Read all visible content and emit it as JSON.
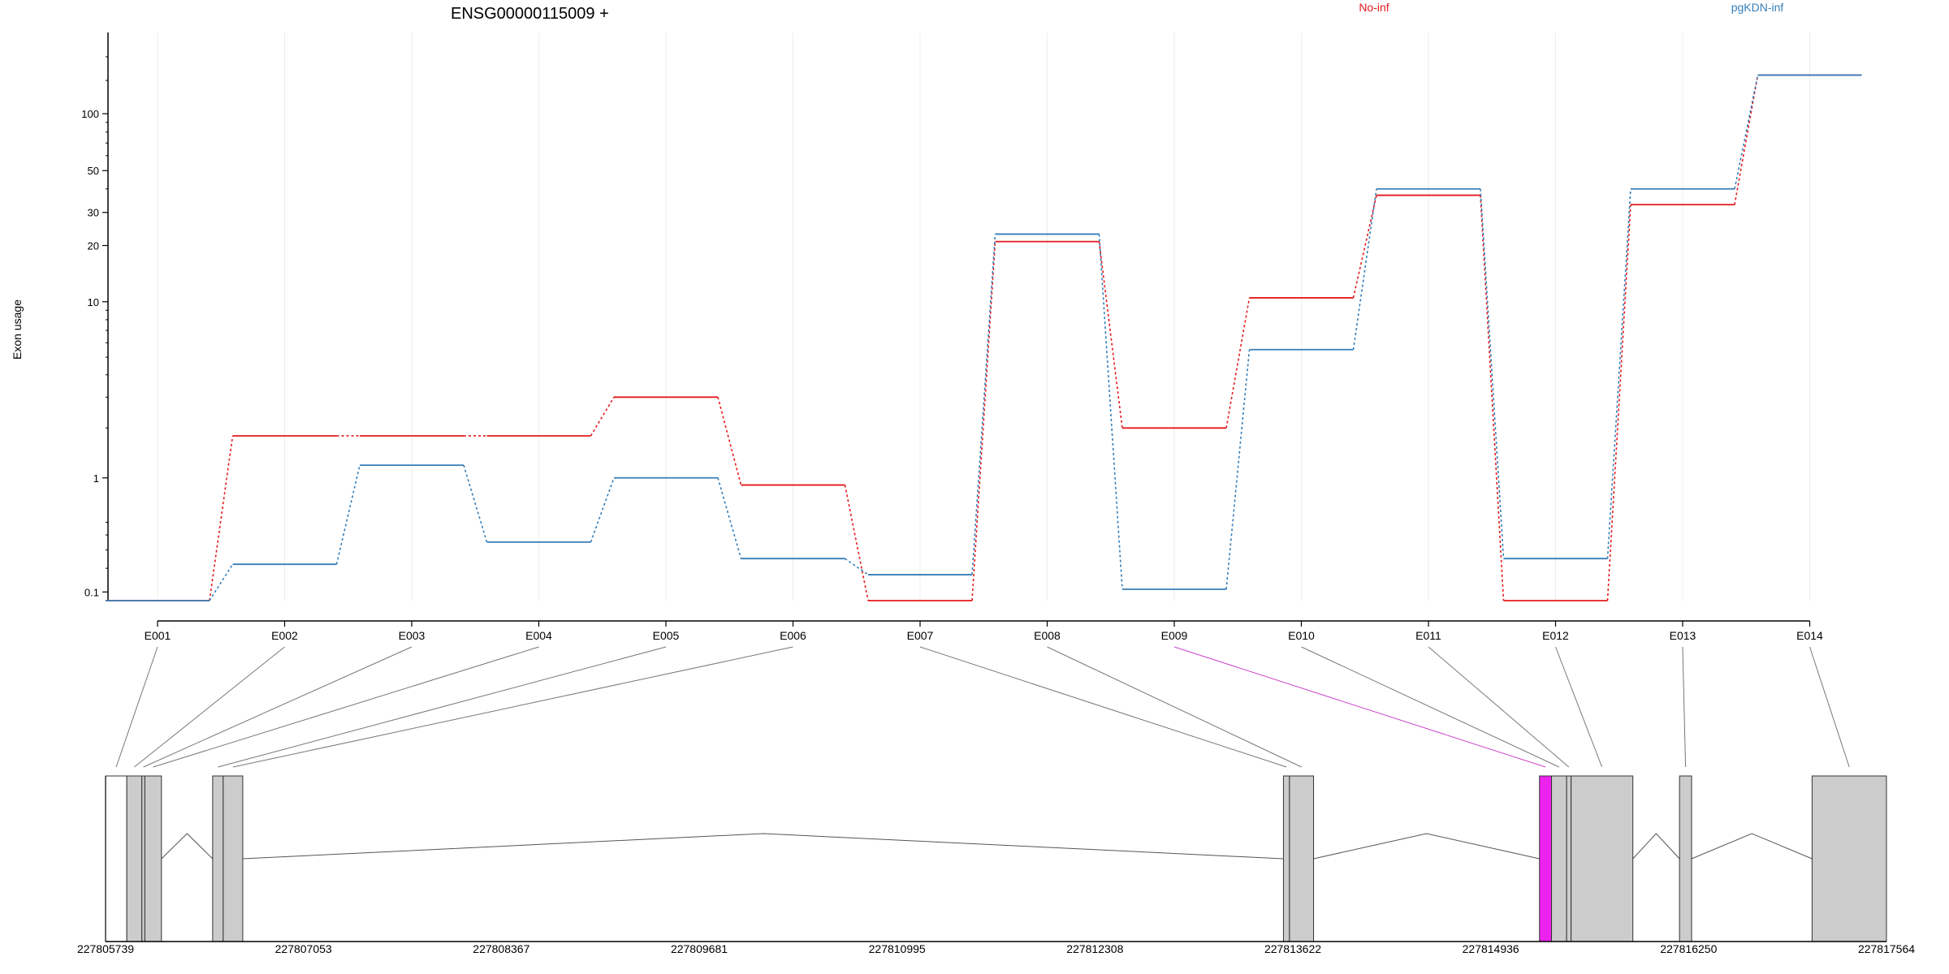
{
  "chart_data": {
    "type": "line",
    "title": "ENSG00000115009 +",
    "ylabel": "Exon usage",
    "yscale": "log-ish (plot offset)",
    "yticks": [
      0.1,
      1,
      10,
      20,
      30,
      50,
      100
    ],
    "ytick_labels": [
      "0.1",
      "1",
      "10",
      "20",
      "30",
      "50",
      "100"
    ],
    "ylim": [
      0.07,
      210
    ],
    "categories": [
      "E001",
      "E002",
      "E003",
      "E004",
      "E005",
      "E006",
      "E007",
      "E008",
      "E009",
      "E010",
      "E011",
      "E012",
      "E013",
      "E014"
    ],
    "series": [
      {
        "name": "No-inf",
        "color": "#e41a1c",
        "values": [
          0.07,
          1.8,
          1.8,
          1.8,
          3.0,
          0.9,
          0.07,
          21,
          2.0,
          10.5,
          37,
          0.07,
          33,
          160
        ]
      },
      {
        "name": "pgKDN-inf",
        "color": "#377eb8",
        "values": [
          0.07,
          0.22,
          1.2,
          0.35,
          1.0,
          0.25,
          0.17,
          23,
          0.11,
          5.5,
          40,
          0.25,
          40,
          160
        ]
      }
    ],
    "highlight_exon": "E009",
    "highlight_color": "#ee22ee",
    "genomic_axis": {
      "start": 227805739,
      "end": 227817564,
      "tick_labels": [
        "227805739",
        "227807053",
        "227808367",
        "227809681",
        "227810995",
        "227812308",
        "227813622",
        "227814936",
        "227816250",
        "227817564"
      ]
    },
    "exons_genomic": [
      {
        "id": "E001",
        "start": 227805739,
        "end": 227805880
      },
      {
        "id": "E002",
        "start": 227805880,
        "end": 227805980
      },
      {
        "id": "E003",
        "start": 227805980,
        "end": 227806000
      },
      {
        "id": "E004",
        "start": 227806000,
        "end": 227806110
      },
      {
        "id": "E005",
        "start": 227806450,
        "end": 227806520
      },
      {
        "id": "E006",
        "start": 227806520,
        "end": 227806650
      },
      {
        "id": "E007",
        "start": 227813560,
        "end": 227813600
      },
      {
        "id": "E008",
        "start": 227813600,
        "end": 227813760
      },
      {
        "id": "E009",
        "start": 227815260,
        "end": 227815340
      },
      {
        "id": "E010",
        "start": 227815340,
        "end": 227815440
      },
      {
        "id": "E011",
        "start": 227815440,
        "end": 227815470
      },
      {
        "id": "E012",
        "start": 227815470,
        "end": 227815880
      },
      {
        "id": "E013",
        "start": 227816190,
        "end": 227816270
      },
      {
        "id": "E014",
        "start": 227817070,
        "end": 227817564
      }
    ],
    "exon_fill": "#cccccc",
    "grid": false,
    "legend_position": "top"
  }
}
